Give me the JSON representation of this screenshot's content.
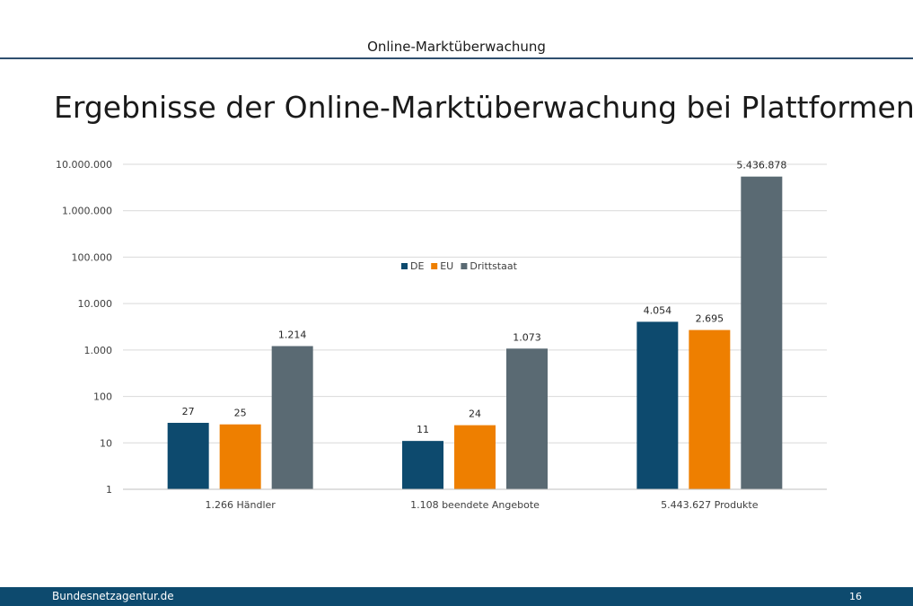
{
  "header": {
    "title": "Online-Marktüberwachung"
  },
  "page_title": "Ergebnisse der Online-Marktüberwachung bei Plattformen",
  "footer": {
    "site": "Bundesnetzagentur.de",
    "page_number": "16"
  },
  "chart_data": {
    "type": "bar",
    "title": "",
    "xlabel": "",
    "ylabel": "",
    "yscale": "log",
    "ylim": [
      1,
      10000000
    ],
    "yticks": [
      1,
      10,
      100,
      1000,
      10000,
      100000,
      1000000,
      10000000
    ],
    "ytick_labels": [
      "1",
      "10",
      "100",
      "1.000",
      "10.000",
      "100.000",
      "1.000.000",
      "10.000.000"
    ],
    "categories": [
      "1.266 Händler",
      "1.108 beendete Angebote",
      "5.443.627 Produkte"
    ],
    "series": [
      {
        "name": "DE",
        "color": "#0d4a6e",
        "values": [
          27,
          11,
          4054
        ],
        "labels": [
          "27",
          "11",
          "4.054"
        ]
      },
      {
        "name": "EU",
        "color": "#ee7f00",
        "values": [
          25,
          24,
          2695
        ],
        "labels": [
          "25",
          "24",
          "2.695"
        ]
      },
      {
        "name": "Drittstaat",
        "color": "#5a6a73",
        "values": [
          1214,
          1073,
          5436878
        ],
        "labels": [
          "1.214",
          "1.073",
          "5.436.878"
        ]
      }
    ],
    "grid": true,
    "legend": "top-center"
  }
}
